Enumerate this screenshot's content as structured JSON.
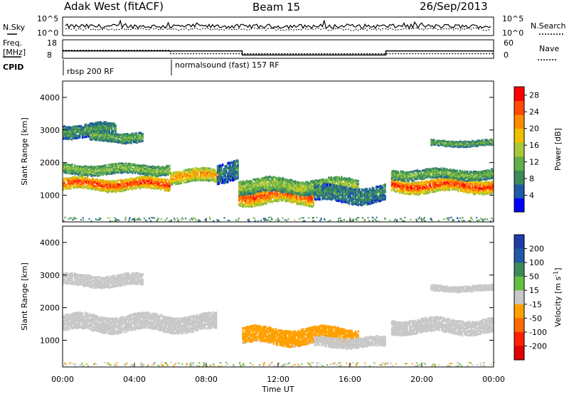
{
  "header": {
    "radar_title": "Adak West (fitACF)",
    "beam": "Beam 15",
    "date": "26/Sep/2013"
  },
  "noise_panel": {
    "left_label": "N.Sky",
    "right_label": "N.Search",
    "left_ticks": [
      "10^5",
      "10^0"
    ],
    "right_ticks": [
      "10^5",
      "10^0"
    ]
  },
  "freq_panel": {
    "left_label_line1": "Freq.",
    "left_label_line2": "[MHz]",
    "right_label": "Nave",
    "left_ticks": [
      "18",
      "8"
    ],
    "right_ticks": [
      "60",
      "0"
    ],
    "freq_steps": [
      {
        "t_start": 0,
        "t_end": 10,
        "freq_mhz": 12
      },
      {
        "t_start": 10,
        "t_end": 18,
        "freq_mhz": 9.8
      },
      {
        "t_start": 18,
        "t_end": 24,
        "freq_mhz": 12
      }
    ],
    "nave_steps": [
      {
        "t_start": 0,
        "t_end": 6,
        "nave": 26
      },
      {
        "t_start": 6,
        "t_end": 24,
        "nave": 15
      }
    ]
  },
  "cpid": {
    "label": "CPID",
    "programs": [
      {
        "name": "rbsp 200 RF",
        "t_start": 0
      },
      {
        "name": "normalsound (fast) 157 RF",
        "t_start": 6
      }
    ]
  },
  "chart_data": [
    {
      "type": "heatmap",
      "name": "power",
      "ylabel": "Slant Range [km]",
      "xlabel": "Time UT",
      "xlim": [
        0,
        24
      ],
      "ylim": [
        180,
        4500
      ],
      "yticks": [
        "1000",
        "2000",
        "3000",
        "4000"
      ],
      "colorbar": {
        "label": "Power [dB]",
        "ticks": [
          "4",
          "8",
          "12",
          "16",
          "20",
          "24",
          "28"
        ],
        "range": [
          0,
          30
        ],
        "colors": [
          "#0000ff",
          "#1e5aa8",
          "#3c8a5a",
          "#63b04a",
          "#a8c93a",
          "#f0c000",
          "#ff8c00",
          "#ff4a00",
          "#ff0000"
        ]
      },
      "regions": [
        {
          "t_start": 0.0,
          "t_end": 6.0,
          "r_center": 1350,
          "r_half": 180,
          "level": 27
        },
        {
          "t_start": 6.0,
          "t_end": 8.6,
          "r_center": 1600,
          "r_half": 200,
          "level": 22
        },
        {
          "t_start": 0.0,
          "t_end": 6.0,
          "r_center": 1800,
          "r_half": 150,
          "level": 14
        },
        {
          "t_start": 8.6,
          "t_end": 9.8,
          "r_center": 1750,
          "r_half": 300,
          "level": 8
        },
        {
          "t_start": 0.0,
          "t_end": 3.0,
          "r_center": 3000,
          "r_half": 200,
          "level": 10
        },
        {
          "t_start": 1.5,
          "t_end": 4.5,
          "r_center": 2800,
          "r_half": 150,
          "level": 12
        },
        {
          "t_start": 9.8,
          "t_end": 14.0,
          "r_center": 1000,
          "r_half": 250,
          "level": 26
        },
        {
          "t_start": 9.8,
          "t_end": 16.5,
          "r_center": 1300,
          "r_half": 220,
          "level": 15
        },
        {
          "t_start": 14.0,
          "t_end": 18.0,
          "r_center": 1050,
          "r_half": 250,
          "level": 9
        },
        {
          "t_start": 18.3,
          "t_end": 24.0,
          "r_center": 1300,
          "r_half": 200,
          "level": 27
        },
        {
          "t_start": 18.3,
          "t_end": 24.0,
          "r_center": 1650,
          "r_half": 150,
          "level": 13
        },
        {
          "t_start": 20.5,
          "t_end": 24.0,
          "r_center": 2600,
          "r_half": 90,
          "level": 12
        }
      ]
    },
    {
      "type": "heatmap",
      "name": "velocity",
      "ylabel": "Slant Range [km]",
      "xlabel": "Time UT",
      "xlim": [
        0,
        24
      ],
      "ylim": [
        180,
        4500
      ],
      "yticks": [
        "1000",
        "2000",
        "3000",
        "4000"
      ],
      "xticks": [
        "00:00",
        "04:00",
        "08:00",
        "12:00",
        "16:00",
        "20:00",
        "00:00"
      ],
      "colorbar": {
        "label": "Velocity [m s",
        "label_exp": "-1",
        "label_end": "]",
        "ticks": [
          "200",
          "100",
          "50",
          "15",
          "-15",
          "-50",
          "-100",
          "-200"
        ],
        "colors": [
          "#1e3ca8",
          "#1e5aa8",
          "#3c8a5a",
          "#63c040",
          "#c8c8c8",
          "#ffa000",
          "#ff6a00",
          "#ff2000",
          "#e00000"
        ]
      },
      "regions": [
        {
          "t_start": 0.0,
          "t_end": 8.6,
          "r_center": 1550,
          "r_half": 250,
          "level": -5
        },
        {
          "t_start": 0.0,
          "t_end": 4.5,
          "r_center": 2850,
          "r_half": 180,
          "level": 5
        },
        {
          "t_start": 10.0,
          "t_end": 16.5,
          "r_center": 1150,
          "r_half": 250,
          "level": -40
        },
        {
          "t_start": 14.0,
          "t_end": 18.0,
          "r_center": 950,
          "r_half": 150,
          "level": 0
        },
        {
          "t_start": 18.3,
          "t_end": 24.0,
          "r_center": 1450,
          "r_half": 220,
          "level": 0
        },
        {
          "t_start": 20.5,
          "t_end": 24.0,
          "r_center": 2600,
          "r_half": 90,
          "level": 0
        }
      ]
    }
  ]
}
